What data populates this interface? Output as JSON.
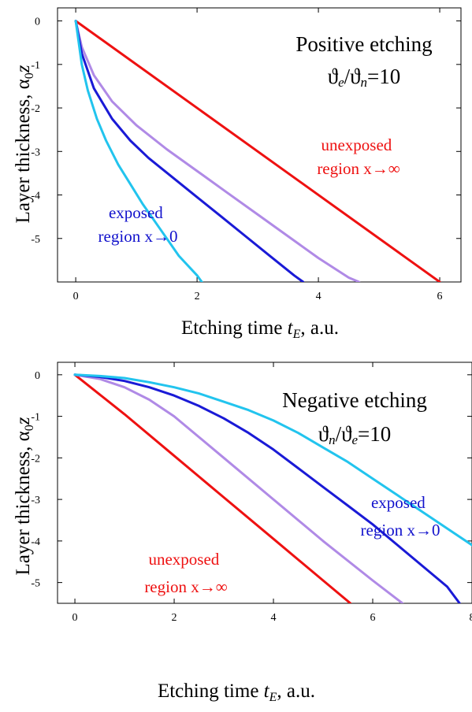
{
  "chart_data": [
    {
      "type": "line",
      "title": "Positive etching",
      "subtitle": "ϑe/ϑn=10",
      "subtitle_parts": {
        "a": "ϑ",
        "a_sub": "e",
        "sep": "/",
        "b": "ϑ",
        "b_sub": "n",
        "rest": "=10"
      },
      "xlabel": "Etching time tE, a.u.",
      "xlabel_parts": {
        "pre": "Etching time ",
        "var": "t",
        "sub": "E",
        "post": ", a.u."
      },
      "ylabel": "Layer thickness, α0z",
      "ylabel_parts": {
        "pre": "Layer thickness, α",
        "sub": "0",
        "var": "z"
      },
      "xlim": [
        -0.3,
        6.35
      ],
      "ylim": [
        -6.0,
        0.3
      ],
      "xticks": [
        "0",
        "2",
        "4",
        "6"
      ],
      "xtick_values": [
        0,
        2,
        4,
        6
      ],
      "yticks": [
        "0",
        "-1",
        "-2",
        "-3",
        "-4",
        "-5"
      ],
      "ytick_values": [
        0,
        -1,
        -2,
        -3,
        -4,
        -5
      ],
      "annotations": [
        {
          "lines": [
            "unexposed",
            "region x→∞"
          ],
          "color": "#ee1111"
        },
        {
          "lines": [
            "exposed",
            "region x→0"
          ],
          "color": "#1111cc"
        }
      ],
      "series": [
        {
          "color": "#ee1111",
          "x": [
            0,
            6.0
          ],
          "y": [
            0,
            -6.0
          ]
        },
        {
          "color": "#b08ae6",
          "x": [
            0,
            0.1,
            0.3,
            0.6,
            1.0,
            1.5,
            2.0,
            2.5,
            3.0,
            3.5,
            4.0,
            4.5,
            4.67
          ],
          "y": [
            0,
            -0.6,
            -1.25,
            -1.85,
            -2.4,
            -2.95,
            -3.45,
            -3.95,
            -4.45,
            -4.95,
            -5.45,
            -5.9,
            -6.0
          ]
        },
        {
          "color": "#1a1ad6",
          "x": [
            0,
            0.1,
            0.3,
            0.6,
            0.9,
            1.2,
            1.6,
            2.0,
            2.4,
            2.8,
            3.2,
            3.6,
            3.75
          ],
          "y": [
            0,
            -0.75,
            -1.55,
            -2.25,
            -2.75,
            -3.15,
            -3.6,
            -4.05,
            -4.5,
            -4.95,
            -5.4,
            -5.85,
            -6.0
          ]
        },
        {
          "color": "#22c4ee",
          "x": [
            0,
            0.1,
            0.2,
            0.35,
            0.5,
            0.7,
            0.9,
            1.1,
            1.4,
            1.7,
            2.0,
            2.08
          ],
          "y": [
            0,
            -1.0,
            -1.6,
            -2.25,
            -2.75,
            -3.3,
            -3.75,
            -4.2,
            -4.8,
            -5.4,
            -5.85,
            -6.0
          ]
        }
      ]
    },
    {
      "type": "line",
      "title": "Negative etching",
      "subtitle": "ϑn/ϑe=10",
      "subtitle_parts": {
        "a": "ϑ",
        "a_sub": "n",
        "sep": "/",
        "b": "ϑ",
        "b_sub": "e",
        "rest": "=10"
      },
      "xlabel": "Etching time tE, a.u.",
      "xlabel_parts": {
        "pre": "Etching time ",
        "var": "t",
        "sub": "E",
        "post": ", a.u."
      },
      "ylabel": "Layer thickness, α0z",
      "ylabel_parts": {
        "pre": "Layer thickness, α",
        "sub": "0",
        "var": "z"
      },
      "xlim": [
        -0.35,
        8.0
      ],
      "ylim": [
        -5.5,
        0.3
      ],
      "xticks": [
        "0",
        "2",
        "4",
        "6",
        "8"
      ],
      "xtick_values": [
        0,
        2,
        4,
        6,
        8
      ],
      "yticks": [
        "0",
        "-1",
        "-2",
        "-3",
        "-4",
        "-5"
      ],
      "ytick_values": [
        0,
        -1,
        -2,
        -3,
        -4,
        -5
      ],
      "annotations": [
        {
          "lines": [
            "exposed",
            "region x→0"
          ],
          "color": "#1111cc"
        },
        {
          "lines": [
            "unexposed",
            "region x→∞"
          ],
          "color": "#ee1111"
        }
      ],
      "series": [
        {
          "color": "#ee1111",
          "x": [
            0,
            1,
            2,
            3,
            4,
            5,
            5.55
          ],
          "y": [
            0,
            -0.95,
            -1.95,
            -2.95,
            -3.95,
            -4.95,
            -5.5
          ]
        },
        {
          "color": "#b08ae6",
          "x": [
            0,
            0.5,
            1.0,
            1.5,
            2.0,
            3.0,
            4.0,
            5.0,
            6.0,
            6.6
          ],
          "y": [
            0,
            -0.1,
            -0.3,
            -0.6,
            -1.0,
            -2.0,
            -3.0,
            -4.0,
            -4.95,
            -5.5
          ]
        },
        {
          "color": "#1a1ad6",
          "x": [
            0,
            0.5,
            1.0,
            1.5,
            2.0,
            2.5,
            3.0,
            3.5,
            4.0,
            4.5,
            5.0,
            5.5,
            6.0,
            6.5,
            7.0,
            7.5,
            7.75
          ],
          "y": [
            0,
            -0.05,
            -0.15,
            -0.3,
            -0.5,
            -0.75,
            -1.05,
            -1.4,
            -1.8,
            -2.25,
            -2.7,
            -3.15,
            -3.6,
            -4.1,
            -4.6,
            -5.1,
            -5.5
          ]
        },
        {
          "color": "#22c4ee",
          "x": [
            0,
            0.5,
            1.0,
            1.5,
            2.0,
            2.5,
            3.0,
            3.5,
            4.0,
            4.5,
            5.0,
            5.5,
            6.0,
            6.5,
            7.0,
            7.5,
            8.0
          ],
          "y": [
            0,
            -0.03,
            -0.08,
            -0.18,
            -0.3,
            -0.45,
            -0.65,
            -0.85,
            -1.1,
            -1.4,
            -1.75,
            -2.1,
            -2.5,
            -2.9,
            -3.3,
            -3.7,
            -4.1
          ]
        }
      ]
    }
  ]
}
